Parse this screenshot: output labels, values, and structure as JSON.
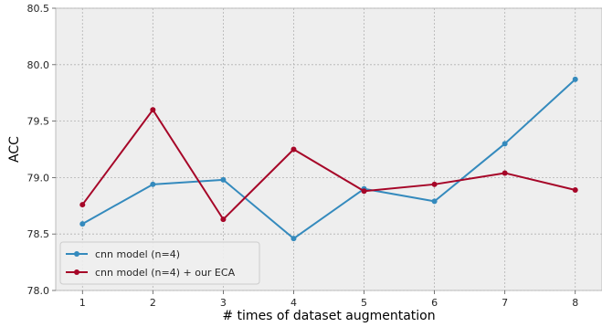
{
  "chart_data": {
    "type": "line",
    "xlabel": "# times of dataset augmentation",
    "ylabel": "ACC",
    "x": [
      1,
      2,
      3,
      4,
      5,
      6,
      7,
      8
    ],
    "xlim": [
      0.62,
      8.38
    ],
    "ylim": [
      78.0,
      80.5
    ],
    "xticks": [
      "1",
      "2",
      "3",
      "4",
      "5",
      "6",
      "7",
      "8"
    ],
    "yticks": [
      "78.0",
      "78.5",
      "79.0",
      "79.5",
      "80.0",
      "80.5"
    ],
    "grid": true,
    "legend_position": "bottom-left",
    "series": [
      {
        "name": "cnn model (n=4)",
        "color": "#348ABD",
        "values": [
          78.59,
          78.94,
          78.98,
          78.46,
          78.9,
          78.79,
          79.3,
          79.87
        ]
      },
      {
        "name": "cnn model (n=4) + our ECA",
        "color": "#A60628",
        "values": [
          78.76,
          79.6,
          78.63,
          79.25,
          78.88,
          78.94,
          79.04,
          78.89
        ]
      }
    ],
    "colors": {
      "plot_background": "#EEEEEE",
      "grid": "#B2B2B2",
      "axis_frame": "#BCBCBC"
    }
  }
}
